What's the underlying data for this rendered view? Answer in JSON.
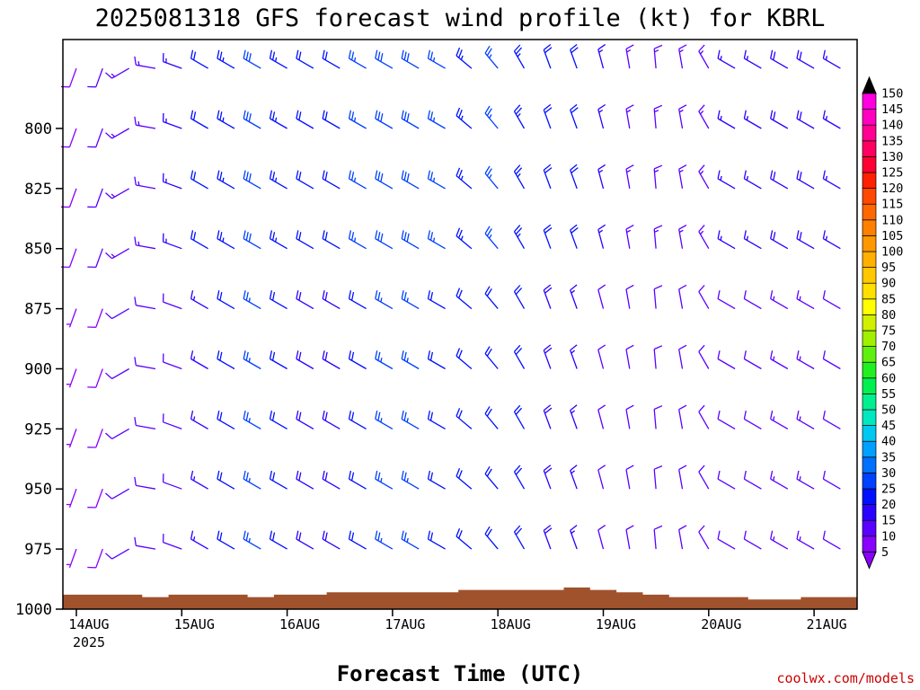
{
  "chart_data": {
    "type": "wind-barb-profile",
    "title": "2025081318 GFS forecast wind profile (kt) for KBRL",
    "xlabel": "Forecast Time (UTC)",
    "ylabel": "",
    "credit": "coolwx.com/models",
    "x_ticks": [
      "14AUG",
      "15AUG",
      "16AUG",
      "17AUG",
      "18AUG",
      "19AUG",
      "20AUG",
      "21AUG"
    ],
    "x_year": "2025",
    "x_range_days": [
      0,
      7.6
    ],
    "y_ticks": [
      800,
      825,
      850,
      875,
      900,
      925,
      950,
      975,
      1000
    ],
    "y_range_hPa": [
      1000,
      763
    ],
    "colorbar": {
      "levels": [
        5,
        10,
        15,
        20,
        25,
        30,
        35,
        40,
        45,
        50,
        55,
        60,
        65,
        70,
        75,
        80,
        85,
        90,
        95,
        100,
        105,
        110,
        115,
        120,
        125,
        130,
        135,
        140,
        145,
        150
      ],
      "colors": [
        "#8a00ff",
        "#5a00ff",
        "#2a00ff",
        "#0010ff",
        "#0040ff",
        "#0070ff",
        "#00a0ff",
        "#00c8f0",
        "#00e8c0",
        "#00f090",
        "#00f050",
        "#20f020",
        "#60f010",
        "#a0f000",
        "#d0f000",
        "#ffff00",
        "#ffe000",
        "#ffc800",
        "#ffb000",
        "#ff9800",
        "#ff8000",
        "#ff6800",
        "#ff4800",
        "#ff2000",
        "#ff0030",
        "#ff0060",
        "#ff0090",
        "#ff00c0",
        "#ff00e0"
      ]
    },
    "levels_hPa": [
      1000,
      975,
      950,
      925,
      900,
      875,
      850,
      825,
      800,
      775
    ],
    "hours": [
      0,
      6,
      12,
      18,
      24,
      30,
      36,
      42,
      48,
      54,
      60,
      66,
      72,
      78,
      84,
      90,
      96,
      102,
      108,
      114,
      120,
      126,
      132,
      138,
      144,
      150,
      156,
      162,
      168,
      174,
      180
    ],
    "wind_dir_deg_at_hour": [
      200,
      200,
      240,
      280,
      290,
      300,
      300,
      300,
      300,
      300,
      300,
      300,
      300,
      300,
      300,
      310,
      320,
      330,
      340,
      340,
      345,
      350,
      355,
      350,
      330,
      300,
      300,
      300,
      300,
      300,
      300
    ],
    "wind_speed_kt_at_hour": [
      5,
      8,
      10,
      10,
      12,
      16,
      20,
      25,
      20,
      18,
      18,
      22,
      25,
      25,
      22,
      20,
      22,
      20,
      18,
      16,
      12,
      10,
      10,
      10,
      10,
      12,
      12,
      14,
      14,
      12,
      12
    ],
    "terrain_top_hPa": [
      994,
      994,
      994,
      995,
      994,
      994,
      994,
      995,
      994,
      994,
      993,
      993,
      993,
      993,
      993,
      992,
      992,
      992,
      992,
      991,
      992,
      993,
      994,
      995,
      995,
      995,
      996,
      996,
      995,
      995,
      995
    ]
  }
}
